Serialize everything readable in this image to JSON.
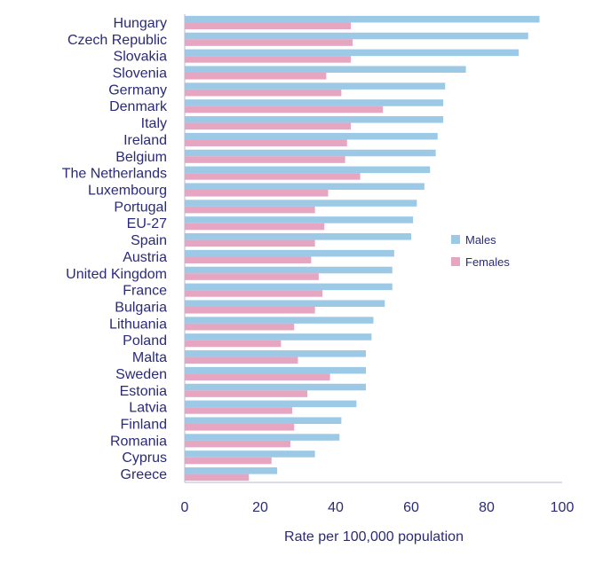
{
  "chart_data": {
    "type": "bar",
    "orientation": "horizontal",
    "xlabel": "Rate per 100,000 population",
    "ylabel": "",
    "xlim": [
      0,
      100
    ],
    "xticks": [
      0,
      20,
      40,
      60,
      80,
      100
    ],
    "grid": false,
    "legend_position": "right",
    "categories": [
      "Hungary",
      "Czech Republic",
      "Slovakia",
      "Slovenia",
      "Germany",
      "Denmark",
      "Italy",
      "Ireland",
      "Belgium",
      "The Netherlands",
      "Luxembourg",
      "Portugal",
      "EU-27",
      "Spain",
      "Austria",
      "United Kingdom",
      "France",
      "Bulgaria",
      "Lithuania",
      "Poland",
      "Malta",
      "Sweden",
      "Estonia",
      "Latvia",
      "Finland",
      "Romania",
      "Cyprus",
      "Greece"
    ],
    "series": [
      {
        "name": "Males",
        "color": "#9cc9e6",
        "values": [
          94,
          91,
          88.5,
          74.5,
          69,
          68.5,
          68.5,
          67,
          66.5,
          65,
          63.5,
          61.5,
          60.5,
          60,
          55.5,
          55,
          55,
          53,
          50,
          49.5,
          48,
          48,
          48,
          45.5,
          41.5,
          41,
          34.5,
          24.5
        ]
      },
      {
        "name": "Females",
        "color": "#e6a5c0",
        "values": [
          44,
          44.5,
          44,
          37.5,
          41.5,
          52.5,
          44,
          43,
          42.5,
          46.5,
          38,
          34.5,
          37,
          34.5,
          33.5,
          35.5,
          36.5,
          34.5,
          29,
          25.5,
          30,
          38.5,
          32.5,
          28.5,
          29,
          28,
          23,
          17
        ]
      }
    ]
  }
}
